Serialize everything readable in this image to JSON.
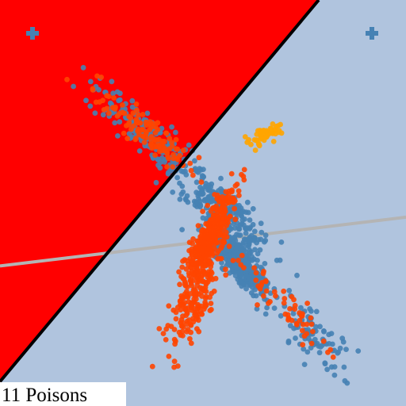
{
  "caption": "11 Poisons",
  "colors": {
    "region_left": "#ff0000",
    "region_right": "#b0c4de",
    "boundary": "#000000",
    "secondary_line": "#b4b4b4",
    "blue": "#4682b4",
    "orange": "#ff4500",
    "gold": "#ffa500"
  },
  "icons": [
    "plus-icon-left-region",
    "plus-icon-right-region"
  ],
  "chart_data": {
    "type": "scatter",
    "title": "",
    "xlabel": "",
    "ylabel": "",
    "grid": false,
    "legend": "none",
    "xlim": [
      -1,
      1
    ],
    "ylim": [
      -1,
      1
    ],
    "decision_boundary": {
      "from": [
        -1,
        -0.88
      ],
      "to": [
        0.57,
        1
      ]
    },
    "secondary_line": {
      "from": [
        -1,
        -0.31
      ],
      "to": [
        1,
        -0.07
      ]
    },
    "clusters": [
      {
        "color": "blue",
        "count": 420,
        "center": [
          0.18,
          -0.3
        ],
        "spread": [
          0.1,
          0.03
        ],
        "angle": -50
      },
      {
        "color": "blue",
        "count": 280,
        "center": [
          0.1,
          -0.05
        ],
        "spread": [
          0.15,
          0.05
        ],
        "angle": -45
      },
      {
        "color": "blue",
        "count": 160,
        "center": [
          -0.3,
          0.36
        ],
        "spread": [
          0.16,
          0.045
        ],
        "angle": -40
      },
      {
        "color": "blue",
        "count": 90,
        "center": [
          0.55,
          -0.66
        ],
        "spread": [
          0.12,
          0.05
        ],
        "angle": -45
      },
      {
        "color": "orange",
        "count": 420,
        "center": [
          0.03,
          -0.18
        ],
        "spread": [
          0.13,
          0.03
        ],
        "angle": 65
      },
      {
        "color": "orange",
        "count": 170,
        "center": [
          -0.05,
          -0.5
        ],
        "spread": [
          0.12,
          0.04
        ],
        "angle": 65
      },
      {
        "color": "orange",
        "count": 120,
        "center": [
          -0.28,
          0.35
        ],
        "spread": [
          0.14,
          0.035
        ],
        "angle": -40
      },
      {
        "color": "orange",
        "count": 60,
        "center": [
          0.4,
          -0.5
        ],
        "spread": [
          0.18,
          0.04
        ],
        "angle": -45
      },
      {
        "color": "gold",
        "count": 55,
        "center": [
          0.31,
          0.34
        ],
        "spread": [
          0.05,
          0.02
        ],
        "angle": 30
      }
    ]
  }
}
